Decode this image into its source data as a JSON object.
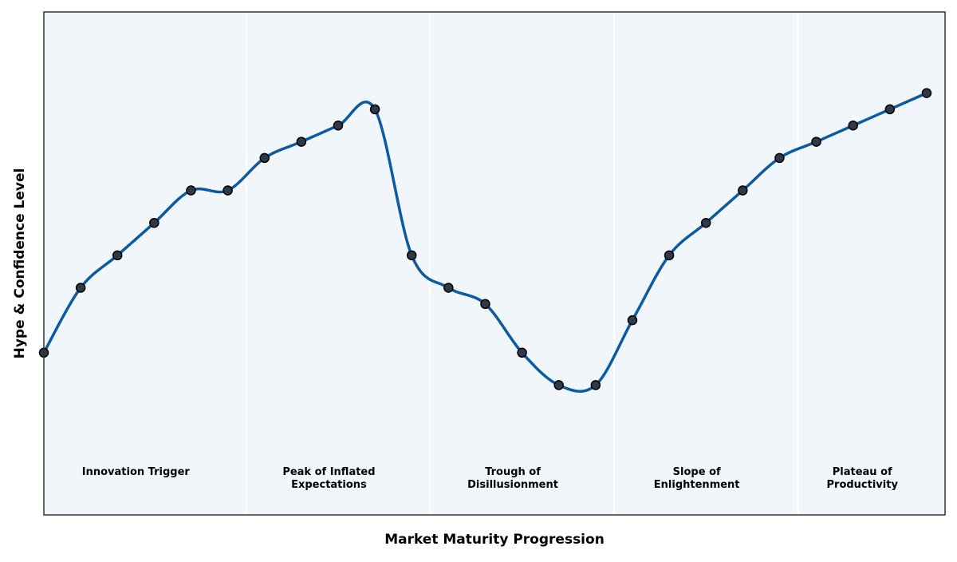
{
  "chart_data": {
    "type": "line",
    "title": "",
    "xlabel": "Market Maturity Progression",
    "ylabel": "Hype & Confidence Level",
    "x_ticks_shown": false,
    "y_ticks_shown": false,
    "grid": false,
    "xlim": [
      0,
      24.5
    ],
    "ylim": [
      0,
      3.1
    ],
    "phases": [
      {
        "label": "Innovation Trigger",
        "start": 0,
        "end": 5.5
      },
      {
        "label": "Peak of Inflated Expectations",
        "start": 5.5,
        "end": 10.5
      },
      {
        "label": "Trough of Disillusionment",
        "start": 10.5,
        "end": 15.5
      },
      {
        "label": "Slope of Enlightenment",
        "start": 15.5,
        "end": 20.5
      },
      {
        "label": "Plateau of Productivity",
        "start": 20.5,
        "end": 24.5
      }
    ],
    "series": [
      {
        "x": [
          0,
          1,
          2,
          3,
          4,
          5,
          6,
          7,
          8,
          9,
          10,
          11,
          12,
          13,
          14,
          15,
          16,
          17,
          18,
          19,
          20,
          21,
          22,
          23,
          24
        ],
        "y": [
          1.0,
          1.4,
          1.6,
          1.8,
          2.0,
          2.0,
          2.2,
          2.3,
          2.4,
          2.5,
          1.6,
          1.4,
          1.3,
          1.0,
          0.8,
          0.8,
          1.2,
          1.6,
          1.8,
          2.0,
          2.2,
          2.3,
          2.4,
          2.5,
          2.6
        ],
        "color": "#0b5aa3"
      }
    ],
    "colors": {
      "line": "#0b5aa3",
      "marker_fill": "#2e3a4a",
      "marker_edge": "#000000",
      "plot_background": "#f1f6fb",
      "phase_divider": "#ffffff",
      "frame": "#333333"
    }
  }
}
